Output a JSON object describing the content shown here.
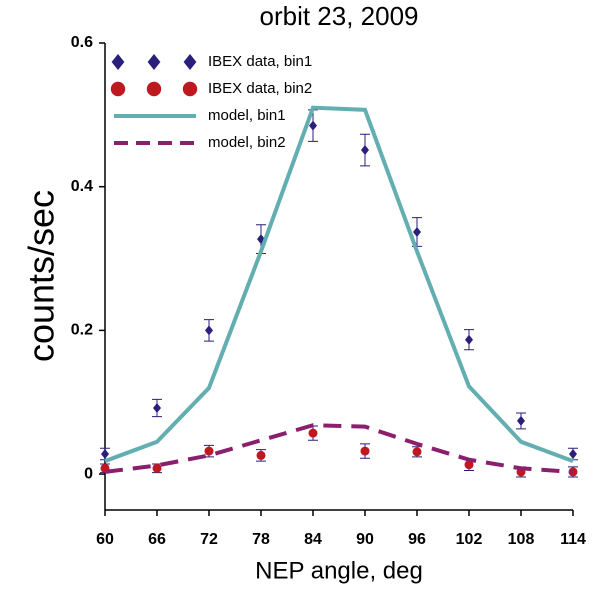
{
  "chart_data": {
    "type": "line",
    "title": "orbit 23, 2009",
    "x_label": "NEP angle, deg",
    "y_label": "counts/sec",
    "x": [
      60,
      66,
      72,
      78,
      84,
      90,
      96,
      102,
      108,
      114
    ],
    "xlim": [
      60,
      114
    ],
    "xticks": [
      60,
      66,
      72,
      78,
      84,
      90,
      96,
      102,
      108,
      114
    ],
    "ylim": [
      -0.05,
      0.6
    ],
    "yticks": [
      0,
      0.2,
      0.4,
      0.6
    ],
    "legend": "upper left",
    "series": [
      {
        "name": "IBEX data, bin1",
        "color": "#2a1f7a",
        "marker": "diamond",
        "values": [
          0.028,
          0.092,
          0.2,
          0.327,
          0.485,
          0.451,
          0.337,
          0.187,
          0.074,
          0.028
        ],
        "errors": [
          0.008,
          0.012,
          0.015,
          0.02,
          0.022,
          0.022,
          0.02,
          0.014,
          0.011,
          0.008
        ]
      },
      {
        "name": "IBEX data, bin2",
        "color": "#c0181f",
        "marker": "circle",
        "values": [
          0.008,
          0.008,
          0.032,
          0.026,
          0.057,
          0.032,
          0.031,
          0.013,
          0.003,
          0.003
        ],
        "errors": [
          0.006,
          0.006,
          0.008,
          0.008,
          0.01,
          0.01,
          0.007,
          0.008,
          0.007,
          0.007
        ]
      },
      {
        "name": "model, bin1",
        "color": "#62aeb0",
        "line": "solid",
        "values": [
          0.018,
          0.045,
          0.12,
          0.31,
          0.51,
          0.507,
          0.31,
          0.122,
          0.045,
          0.018
        ]
      },
      {
        "name": "model, bin2",
        "color": "#8a1f6e",
        "line": "dashed",
        "values": [
          0.003,
          0.012,
          0.026,
          0.047,
          0.068,
          0.066,
          0.042,
          0.02,
          0.008,
          0.003
        ]
      }
    ]
  }
}
